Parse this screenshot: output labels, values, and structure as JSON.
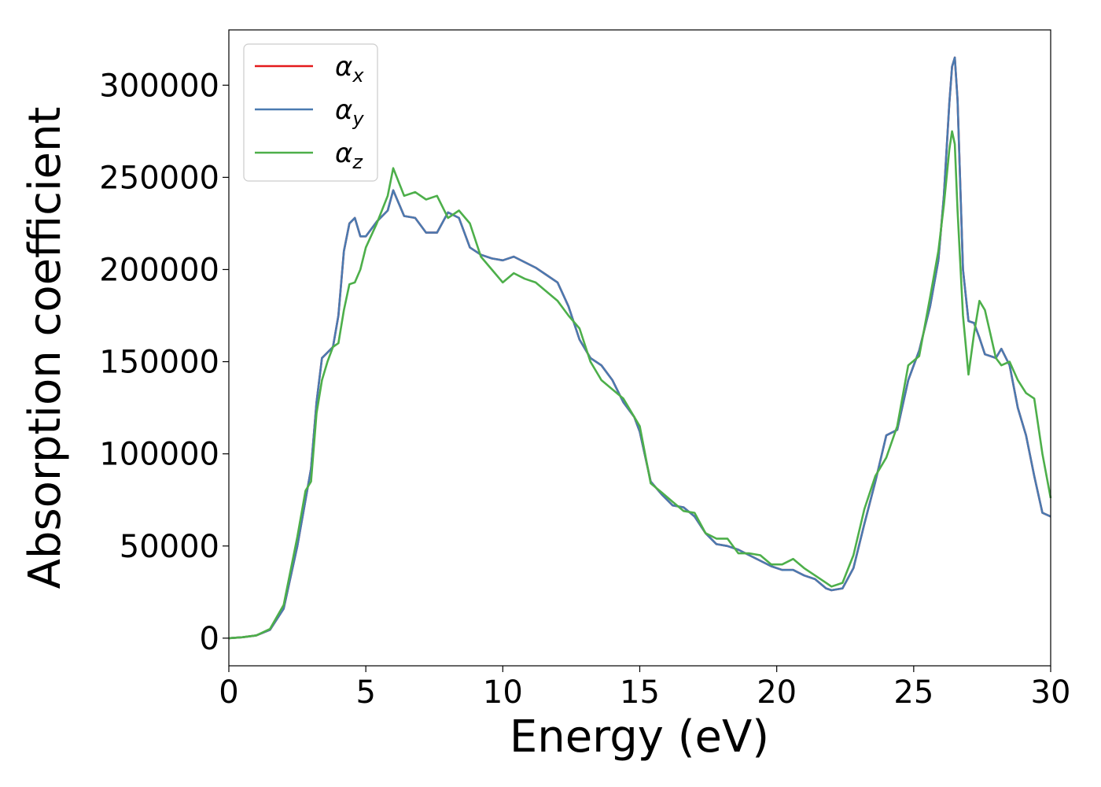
{
  "chart_data": {
    "type": "line",
    "xlabel": "Energy (eV)",
    "ylabel": "Absorption coefficient",
    "xlim": [
      0,
      30
    ],
    "ylim": [
      -15000,
      330000
    ],
    "xticks": [
      0,
      5,
      10,
      15,
      20,
      25,
      30
    ],
    "yticks": [
      0,
      50000,
      100000,
      150000,
      200000,
      250000,
      300000
    ],
    "grid": false,
    "legend_position": "top-left",
    "series": [
      {
        "name": "α",
        "subscript": "x",
        "color": "#e41a1c",
        "x": [
          0,
          0.5,
          1,
          1.5,
          2,
          2.5,
          2.8,
          3,
          3.2,
          3.4,
          3.6,
          3.8,
          4,
          4.2,
          4.4,
          4.6,
          4.8,
          5,
          5.4,
          5.8,
          6,
          6.4,
          6.8,
          7.2,
          7.6,
          8,
          8.4,
          8.8,
          9.2,
          9.6,
          10,
          10.4,
          10.8,
          11.2,
          11.6,
          12,
          12.4,
          12.8,
          13.2,
          13.6,
          14,
          14.4,
          14.8,
          15,
          15.4,
          15.8,
          16.2,
          16.6,
          17,
          17.4,
          17.8,
          18.2,
          18.6,
          19,
          19.4,
          19.8,
          20.2,
          20.6,
          21,
          21.4,
          21.8,
          22,
          22.4,
          22.8,
          23.2,
          23.6,
          24,
          24.4,
          24.8,
          25.2,
          25.6,
          25.9,
          26.1,
          26.3,
          26.4,
          26.5,
          26.6,
          26.8,
          27,
          27.2,
          27.4,
          27.6,
          27.8,
          28,
          28.2,
          28.5,
          28.8,
          29.1,
          29.4,
          29.7,
          30
        ],
        "values": [
          0,
          500,
          1500,
          4500,
          16000,
          50000,
          75000,
          92000,
          128000,
          152000,
          155000,
          158000,
          175000,
          210000,
          225000,
          228000,
          218000,
          218000,
          226000,
          232000,
          243000,
          229000,
          228000,
          220000,
          220000,
          231000,
          228000,
          212000,
          208000,
          206000,
          205000,
          207000,
          204000,
          201000,
          197000,
          193000,
          180000,
          162000,
          152000,
          148000,
          140000,
          128000,
          120000,
          112000,
          85000,
          78000,
          72000,
          71000,
          66000,
          57000,
          51000,
          50000,
          48000,
          45000,
          42000,
          39000,
          37000,
          37000,
          34000,
          32000,
          27000,
          26000,
          27000,
          38000,
          62000,
          85000,
          110000,
          113000,
          140000,
          156000,
          180000,
          205000,
          240000,
          290000,
          310000,
          315000,
          292000,
          200000,
          172000,
          171000,
          163000,
          154000,
          153000,
          152000,
          157000,
          148000,
          125000,
          110000,
          88000,
          68000,
          66000
        ]
      },
      {
        "name": "α",
        "subscript": "y",
        "color": "#4a7ab0",
        "x": [
          0,
          0.5,
          1,
          1.5,
          2,
          2.5,
          2.8,
          3,
          3.2,
          3.4,
          3.6,
          3.8,
          4,
          4.2,
          4.4,
          4.6,
          4.8,
          5,
          5.4,
          5.8,
          6,
          6.4,
          6.8,
          7.2,
          7.6,
          8,
          8.4,
          8.8,
          9.2,
          9.6,
          10,
          10.4,
          10.8,
          11.2,
          11.6,
          12,
          12.4,
          12.8,
          13.2,
          13.6,
          14,
          14.4,
          14.8,
          15,
          15.4,
          15.8,
          16.2,
          16.6,
          17,
          17.4,
          17.8,
          18.2,
          18.6,
          19,
          19.4,
          19.8,
          20.2,
          20.6,
          21,
          21.4,
          21.8,
          22,
          22.4,
          22.8,
          23.2,
          23.6,
          24,
          24.4,
          24.8,
          25.2,
          25.6,
          25.9,
          26.1,
          26.3,
          26.4,
          26.5,
          26.6,
          26.8,
          27,
          27.2,
          27.4,
          27.6,
          27.8,
          28,
          28.2,
          28.5,
          28.8,
          29.1,
          29.4,
          29.7,
          30
        ],
        "values": [
          0,
          500,
          1500,
          4500,
          16000,
          50000,
          75000,
          92000,
          128000,
          152000,
          155000,
          158000,
          175000,
          210000,
          225000,
          228000,
          218000,
          218000,
          226000,
          232000,
          243000,
          229000,
          228000,
          220000,
          220000,
          231000,
          228000,
          212000,
          208000,
          206000,
          205000,
          207000,
          204000,
          201000,
          197000,
          193000,
          180000,
          162000,
          152000,
          148000,
          140000,
          128000,
          120000,
          112000,
          85000,
          78000,
          72000,
          71000,
          66000,
          57000,
          51000,
          50000,
          48000,
          45000,
          42000,
          39000,
          37000,
          37000,
          34000,
          32000,
          27000,
          26000,
          27000,
          38000,
          62000,
          85000,
          110000,
          113000,
          140000,
          156000,
          180000,
          205000,
          240000,
          290000,
          310000,
          315000,
          292000,
          200000,
          172000,
          171000,
          163000,
          154000,
          153000,
          152000,
          157000,
          148000,
          125000,
          110000,
          88000,
          68000,
          66000
        ]
      },
      {
        "name": "α",
        "subscript": "z",
        "color": "#4daf4a",
        "x": [
          0,
          0.5,
          1,
          1.5,
          2,
          2.5,
          2.8,
          3,
          3.2,
          3.4,
          3.6,
          3.8,
          4,
          4.2,
          4.4,
          4.6,
          4.8,
          5,
          5.4,
          5.8,
          6,
          6.4,
          6.8,
          7.2,
          7.6,
          8,
          8.4,
          8.8,
          9.2,
          9.6,
          10,
          10.4,
          10.8,
          11.2,
          11.6,
          12,
          12.4,
          12.8,
          13.2,
          13.6,
          14,
          14.4,
          14.8,
          15,
          15.4,
          15.8,
          16.2,
          16.6,
          17,
          17.4,
          17.8,
          18.2,
          18.6,
          19,
          19.4,
          19.8,
          20.2,
          20.6,
          21,
          21.4,
          21.8,
          22,
          22.4,
          22.8,
          23.2,
          23.6,
          24,
          24.4,
          24.8,
          25.2,
          25.6,
          25.9,
          26.1,
          26.3,
          26.4,
          26.5,
          26.6,
          26.8,
          27,
          27.2,
          27.4,
          27.6,
          27.8,
          28,
          28.2,
          28.5,
          28.8,
          29.1,
          29.4,
          29.7,
          30
        ],
        "values": [
          0,
          500,
          1500,
          5000,
          18000,
          55000,
          80000,
          85000,
          122000,
          140000,
          150000,
          158000,
          160000,
          178000,
          192000,
          193000,
          200000,
          212000,
          225000,
          240000,
          255000,
          240000,
          242000,
          238000,
          240000,
          228000,
          232000,
          225000,
          207000,
          200000,
          193000,
          198000,
          195000,
          193000,
          188000,
          183000,
          175000,
          168000,
          150000,
          140000,
          135000,
          130000,
          120000,
          115000,
          84000,
          79000,
          74000,
          69000,
          68000,
          57000,
          54000,
          54000,
          46000,
          46000,
          45000,
          40000,
          40000,
          43000,
          38000,
          34000,
          30000,
          28000,
          30000,
          45000,
          70000,
          88000,
          98000,
          115000,
          148000,
          153000,
          185000,
          210000,
          235000,
          265000,
          275000,
          268000,
          232000,
          175000,
          143000,
          165000,
          183000,
          178000,
          165000,
          152000,
          148000,
          150000,
          140000,
          133000,
          130000,
          100000,
          76000
        ]
      }
    ]
  }
}
